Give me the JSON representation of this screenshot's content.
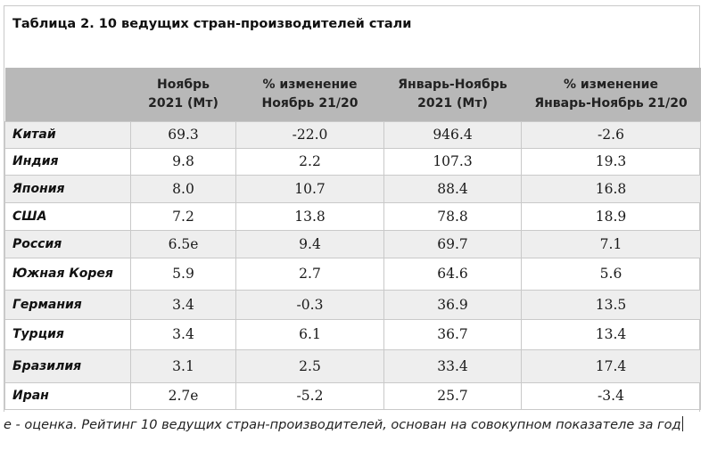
{
  "title": "Таблица 2. 10 ведущих стран-производителей стали",
  "table": {
    "headers": [
      [
        "",
        ""
      ],
      [
        "Ноябрь",
        "2021 (Мт)"
      ],
      [
        "% изменение",
        "Ноябрь 21/20"
      ],
      [
        "Январь-Ноябрь",
        "2021 (Мт)"
      ],
      [
        "% изменение",
        "Январь-Ноябрь 21/20"
      ]
    ],
    "rows": [
      [
        "Китай",
        "69.3",
        "-22.0",
        "946.4",
        "-2.6"
      ],
      [
        "Индия",
        "9.8",
        "2.2",
        "107.3",
        "19.3"
      ],
      [
        "Япония",
        "8.0",
        "10.7",
        "88.4",
        "16.8"
      ],
      [
        "США",
        "7.2",
        "13.8",
        "78.8",
        "18.9"
      ],
      [
        "Россия",
        "6.5e",
        "9.4",
        "69.7",
        "7.1"
      ],
      [
        "Южная Корея",
        "5.9",
        "2.7",
        "64.6",
        "5.6"
      ],
      [
        "Германия",
        "3.4",
        "-0.3",
        "36.9",
        "13.5"
      ],
      [
        "Турция",
        "3.4",
        "6.1",
        "36.7",
        "13.4"
      ],
      [
        "Бразилия",
        "3.1",
        "2.5",
        "33.4",
        "17.4"
      ],
      [
        "Иран",
        "2.7e",
        "-5.2",
        "25.7",
        "-3.4"
      ]
    ]
  },
  "footnote": "е - оценка. Рейтинг 10 ведущих стран-производителей, основан на совокупном показателе за год",
  "colors": {
    "header_bg": "#b8b8b8",
    "shaded_row_bg": "#eeeeee",
    "grid": "#c9c9c9"
  }
}
